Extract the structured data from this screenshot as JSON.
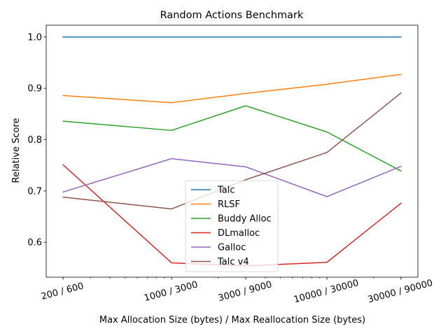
{
  "chart_data": {
    "type": "line",
    "title": "Random Actions Benchmark",
    "xlabel": "Max Allocation Size (bytes) / Max Reallocation Size (bytes)",
    "ylabel": "Relative Score",
    "xscale": "log",
    "x": [
      200,
      1000,
      3000,
      10000,
      30000
    ],
    "x_tick_labels": [
      "200 / 600",
      "1000 / 3000",
      "3000 / 9000",
      "10000 / 30000",
      "30000 / 90000"
    ],
    "ylim": [
      0.532,
      1.023
    ],
    "y_ticks": [
      0.6,
      0.7,
      0.8,
      0.9,
      1.0
    ],
    "y_tick_labels": [
      "0.6",
      "0.7",
      "0.8",
      "0.9",
      "1.0"
    ],
    "grid": false,
    "legend_position": "lower center",
    "series": [
      {
        "name": "Talc",
        "color": "#1f77b4",
        "values": [
          1.0,
          1.0,
          1.0,
          1.0,
          1.0
        ]
      },
      {
        "name": "RLSF",
        "color": "#ff7f0e",
        "values": [
          0.886,
          0.872,
          0.89,
          0.908,
          0.927
        ]
      },
      {
        "name": "Buddy Alloc",
        "color": "#2ca02c",
        "values": [
          0.836,
          0.818,
          0.866,
          0.815,
          0.739
        ]
      },
      {
        "name": "DLmalloc",
        "color": "#d62728",
        "values": [
          0.751,
          0.56,
          0.554,
          0.561,
          0.676
        ]
      },
      {
        "name": "Galloc",
        "color": "#9467bd",
        "values": [
          0.698,
          0.763,
          0.747,
          0.689,
          0.748
        ]
      },
      {
        "name": "Talc v4",
        "color": "#8c564b",
        "values": [
          0.688,
          0.665,
          0.722,
          0.775,
          0.891
        ]
      }
    ]
  }
}
